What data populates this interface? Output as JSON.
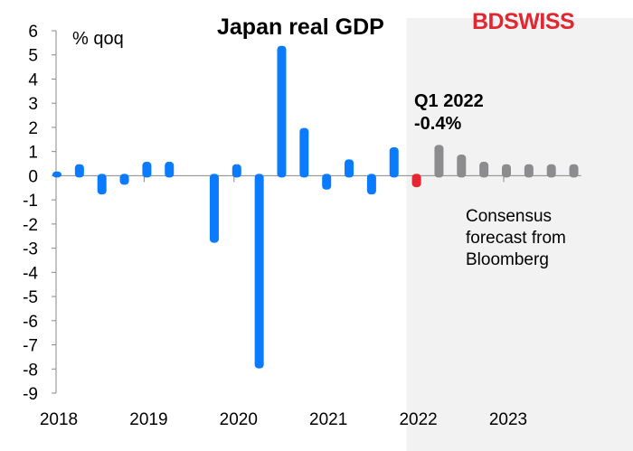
{
  "chart_data": {
    "type": "bar",
    "title": "Japan real GDP",
    "ylabel": "% qoq",
    "ylim": [
      -9,
      6
    ],
    "yticks": [
      6,
      5,
      4,
      3,
      2,
      1,
      0,
      -1,
      -2,
      -3,
      -4,
      -5,
      -6,
      -7,
      -8,
      -9
    ],
    "xtick_labels": [
      "2018",
      "2019",
      "2020",
      "2021",
      "2022",
      "2023"
    ],
    "grid": false,
    "categories": [
      "2018Q1",
      "2018Q2",
      "2018Q3",
      "2018Q4",
      "2019Q1",
      "2019Q2",
      "2019Q3",
      "2019Q4",
      "2020Q1",
      "2020Q2",
      "2020Q3",
      "2020Q4",
      "2021Q1",
      "2021Q2",
      "2021Q3",
      "2021Q4",
      "2022Q1",
      "2022Q2",
      "2022Q3",
      "2022Q4",
      "2023Q1",
      "2023Q2",
      "2023Q3",
      "2023Q4"
    ],
    "values": [
      0.1,
      0.4,
      -0.7,
      -0.3,
      0.5,
      0.5,
      0.0,
      -2.7,
      0.4,
      -7.9,
      5.3,
      1.9,
      -0.5,
      0.6,
      -0.7,
      1.1,
      -0.4,
      1.2,
      0.8,
      0.5,
      0.4,
      0.4,
      0.4,
      0.4
    ],
    "kinds": [
      "actual",
      "actual",
      "actual",
      "actual",
      "actual",
      "actual",
      "actual",
      "actual",
      "actual",
      "actual",
      "actual",
      "actual",
      "actual",
      "actual",
      "actual",
      "actual",
      "latest",
      "forecast",
      "forecast",
      "forecast",
      "forecast",
      "forecast",
      "forecast",
      "forecast"
    ],
    "colors": {
      "actual": "#0a7bff",
      "latest": "#e3262f",
      "forecast": "#8c8c8e",
      "shade": "#f2f2f2"
    },
    "annotation": {
      "line1": "Q1 2022",
      "line2": "-0.4%"
    },
    "shaded_note": "Consensus forecast from Bloomberg"
  },
  "logo": {
    "text": "BDSWISS"
  }
}
